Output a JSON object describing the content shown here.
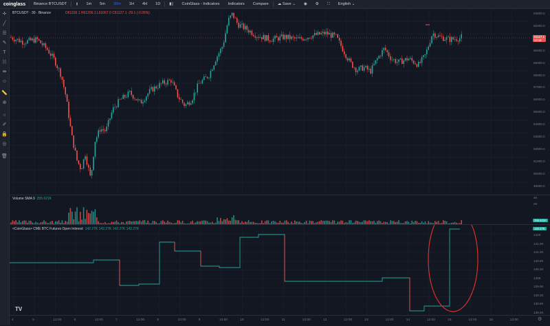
{
  "topbar": {
    "logo": "coinglass",
    "symbol": "Binance BTCUSDT",
    "intervals": [
      "1m",
      "5m",
      "30m",
      "1H",
      "4H",
      "1D"
    ],
    "active_interval": "30m",
    "items": [
      "CoinGlass - Indicators",
      "Indicators",
      "Compare",
      "Save",
      "English"
    ]
  },
  "main_pane": {
    "title": "BTCUSDT · 30 · Binance",
    "ohlc_text": "O61156.1 H61206.1 L61067.0 C61127.1 -29.1 (-0.05%)",
    "price_labels": [
      "63000.0",
      "62000.0",
      "61000.0",
      "60000.0",
      "59000.0",
      "58000.0",
      "57000.0",
      "56000.0",
      "55000.0",
      "54000.0",
      "53000.0",
      "52000.0",
      "51000.0",
      "50000.0",
      "49000.0"
    ],
    "last_price": "61127.1",
    "countdown": "03:19"
  },
  "volume_pane": {
    "title": "Volume",
    "ma_label": "SMA 9",
    "ma_value": "255.621K",
    "labels": [
      "4K",
      "2K"
    ]
  },
  "oi_pane": {
    "title": "<CoinGlass> CME BTC Futures Open Interest",
    "values_text": "142.27K 142.27K 142.27K 142.27K",
    "labels": [
      "142K",
      "141.6K",
      "141.2K",
      "140.8K",
      "140.4K",
      "140K",
      "139.6K",
      "139.2K",
      "138.8K",
      "138.4K"
    ],
    "value_tag": "142.27K"
  },
  "time_axis": [
    "4",
    "5",
    "12:00",
    "6",
    "12:00",
    "7",
    "12:00",
    "8",
    "12:00",
    "9",
    "12:00",
    "10",
    "12:00",
    "11",
    "12:00",
    "12",
    "12:00",
    "13",
    "12:00",
    "14",
    "12:00",
    "15",
    "12:00",
    "16",
    "12:00"
  ],
  "colors": {
    "up": "#26a69a",
    "down": "#ef5350",
    "background": "#131722",
    "highlight": "#d9302b"
  },
  "tools": [
    "crosshair-icon",
    "trendline-icon",
    "fib-icon",
    "brush-icon",
    "text-icon",
    "pattern-icon",
    "measure-icon",
    "zoom-icon",
    "magnet-icon",
    "lock-icon",
    "eye-icon",
    "trash-icon"
  ]
}
